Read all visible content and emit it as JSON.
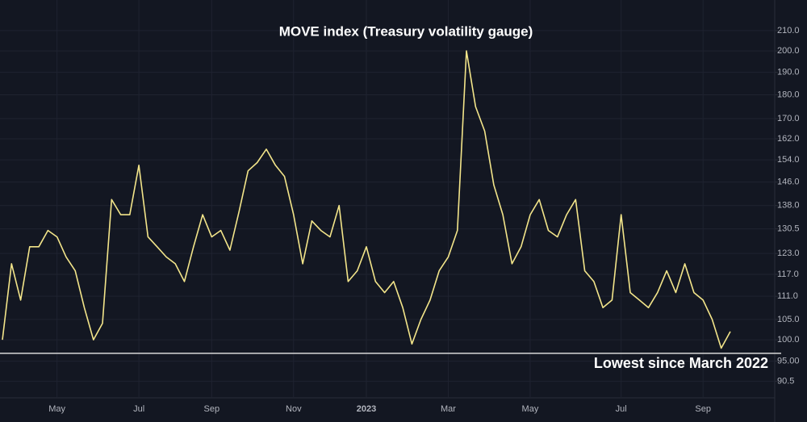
{
  "chart_data": {
    "type": "line",
    "title": "MOVE index (Treasury volatility gauge)",
    "annotation": "Lowest since March 2022",
    "log_scale": true,
    "grid": true,
    "reference_line": 96.8,
    "categories": [
      null,
      null,
      null,
      null,
      null,
      null,
      "May",
      null,
      null,
      null,
      null,
      null,
      null,
      null,
      null,
      "Jul",
      null,
      null,
      null,
      null,
      null,
      null,
      null,
      "Sep",
      null,
      null,
      null,
      null,
      null,
      null,
      null,
      null,
      "Nov",
      null,
      null,
      null,
      null,
      null,
      null,
      null,
      "2023",
      null,
      null,
      null,
      null,
      null,
      null,
      null,
      null,
      "Mar",
      null,
      null,
      null,
      null,
      null,
      null,
      null,
      null,
      "May",
      null,
      null,
      null,
      null,
      null,
      null,
      null,
      null,
      null,
      "Jul",
      null,
      null,
      null,
      null,
      null,
      null,
      null,
      null,
      "Sep",
      null,
      null,
      null
    ],
    "series": [
      {
        "name": "MOVE",
        "color": "#f3e58a",
        "values": [
          100,
          120,
          110,
          125,
          125,
          130,
          128,
          122,
          118,
          108,
          100,
          104,
          140,
          135,
          135,
          152,
          128,
          125,
          122,
          120,
          115,
          125,
          135,
          128,
          130,
          124,
          136,
          150,
          153,
          158,
          152,
          148,
          135,
          120,
          133,
          130,
          128,
          138,
          115,
          118,
          125,
          115,
          112,
          115,
          108,
          99,
          105,
          110,
          118,
          122,
          130,
          200,
          175,
          165,
          145,
          135,
          120,
          125,
          135,
          140,
          130,
          128,
          135,
          140,
          118,
          115,
          108,
          110,
          135,
          112,
          110,
          108,
          112,
          118,
          112,
          120,
          112,
          110,
          105,
          98,
          102
        ]
      }
    ],
    "ylim": [
      87,
      226
    ],
    "yticks": [
      {
        "value": 210,
        "label": "210.0"
      },
      {
        "value": 200,
        "label": "200.0"
      },
      {
        "value": 190,
        "label": "190.0"
      },
      {
        "value": 180,
        "label": "180.0"
      },
      {
        "value": 170,
        "label": "170.0"
      },
      {
        "value": 162,
        "label": "162.0"
      },
      {
        "value": 154,
        "label": "154.0"
      },
      {
        "value": 146,
        "label": "146.0"
      },
      {
        "value": 138,
        "label": "138.0"
      },
      130.5,
      {
        "value": 123,
        "label": "123.0"
      },
      {
        "value": 117,
        "label": "117.0"
      },
      {
        "value": 111,
        "label": "111.0"
      },
      {
        "value": 105,
        "label": "105.0"
      },
      {
        "value": 100,
        "label": "100.0"
      },
      {
        "value": 95,
        "label": "95.00"
      },
      90.5
    ]
  }
}
